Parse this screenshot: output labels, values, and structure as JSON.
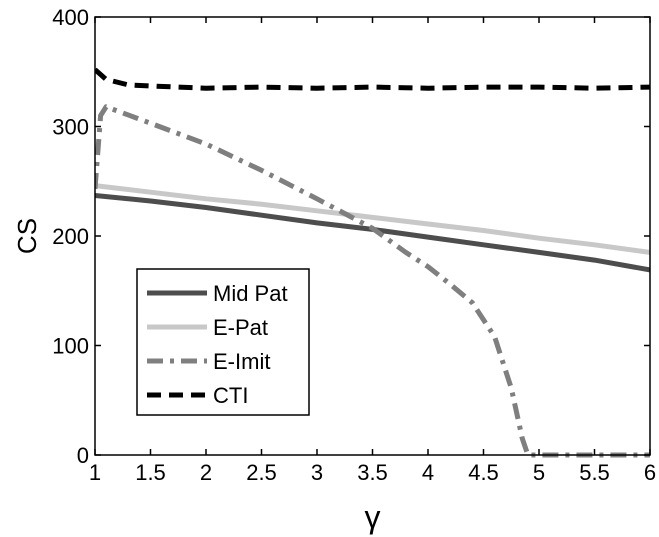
{
  "chart_data": {
    "type": "line",
    "xlabel": "γ",
    "ylabel": "CS",
    "xlim": [
      1,
      6
    ],
    "ylim": [
      0,
      400
    ],
    "xticks": [
      "1",
      "1.5",
      "2",
      "2.5",
      "3",
      "3.5",
      "4",
      "4.5",
      "5",
      "5.5",
      "6"
    ],
    "yticks": [
      "0",
      "100",
      "200",
      "300",
      "400"
    ],
    "grid": false,
    "legend_position": "lower-left",
    "series": [
      {
        "name": "Mid Pat",
        "color": "#4d4d4d",
        "style": "solid",
        "x": [
          1,
          1.5,
          2,
          2.5,
          3,
          3.5,
          4,
          4.5,
          5,
          5.5,
          6
        ],
        "y": [
          237,
          232,
          226,
          219,
          212,
          206,
          199,
          192,
          185,
          178,
          169
        ]
      },
      {
        "name": "E-Pat",
        "color": "#c8c8c8",
        "style": "solid",
        "x": [
          1,
          1.5,
          2,
          2.5,
          3,
          3.5,
          4,
          4.5,
          5,
          5.5,
          6
        ],
        "y": [
          246,
          240,
          234,
          229,
          223,
          217,
          211,
          205,
          198,
          192,
          185
        ]
      },
      {
        "name": "E-Imit",
        "color": "#7f7f7f",
        "style": "dashdot",
        "x": [
          1,
          1.05,
          1.1,
          1.5,
          2,
          2.5,
          3,
          3.5,
          3.8,
          4,
          4.2,
          4.4,
          4.6,
          4.75,
          4.85,
          4.9,
          5,
          5.5,
          6
        ],
        "y": [
          243,
          310,
          318,
          303,
          284,
          260,
          234,
          207,
          185,
          172,
          156,
          139,
          108,
          61,
          15,
          0,
          0,
          0,
          0
        ]
      },
      {
        "name": "CTI",
        "color": "#000000",
        "style": "dashed",
        "x": [
          1,
          1.1,
          1.3,
          1.5,
          2,
          2.5,
          3,
          3.5,
          4,
          4.5,
          5,
          5.5,
          6
        ],
        "y": [
          352,
          343,
          338,
          337,
          335,
          336,
          335,
          336,
          335,
          336,
          336,
          335,
          336
        ]
      }
    ]
  }
}
